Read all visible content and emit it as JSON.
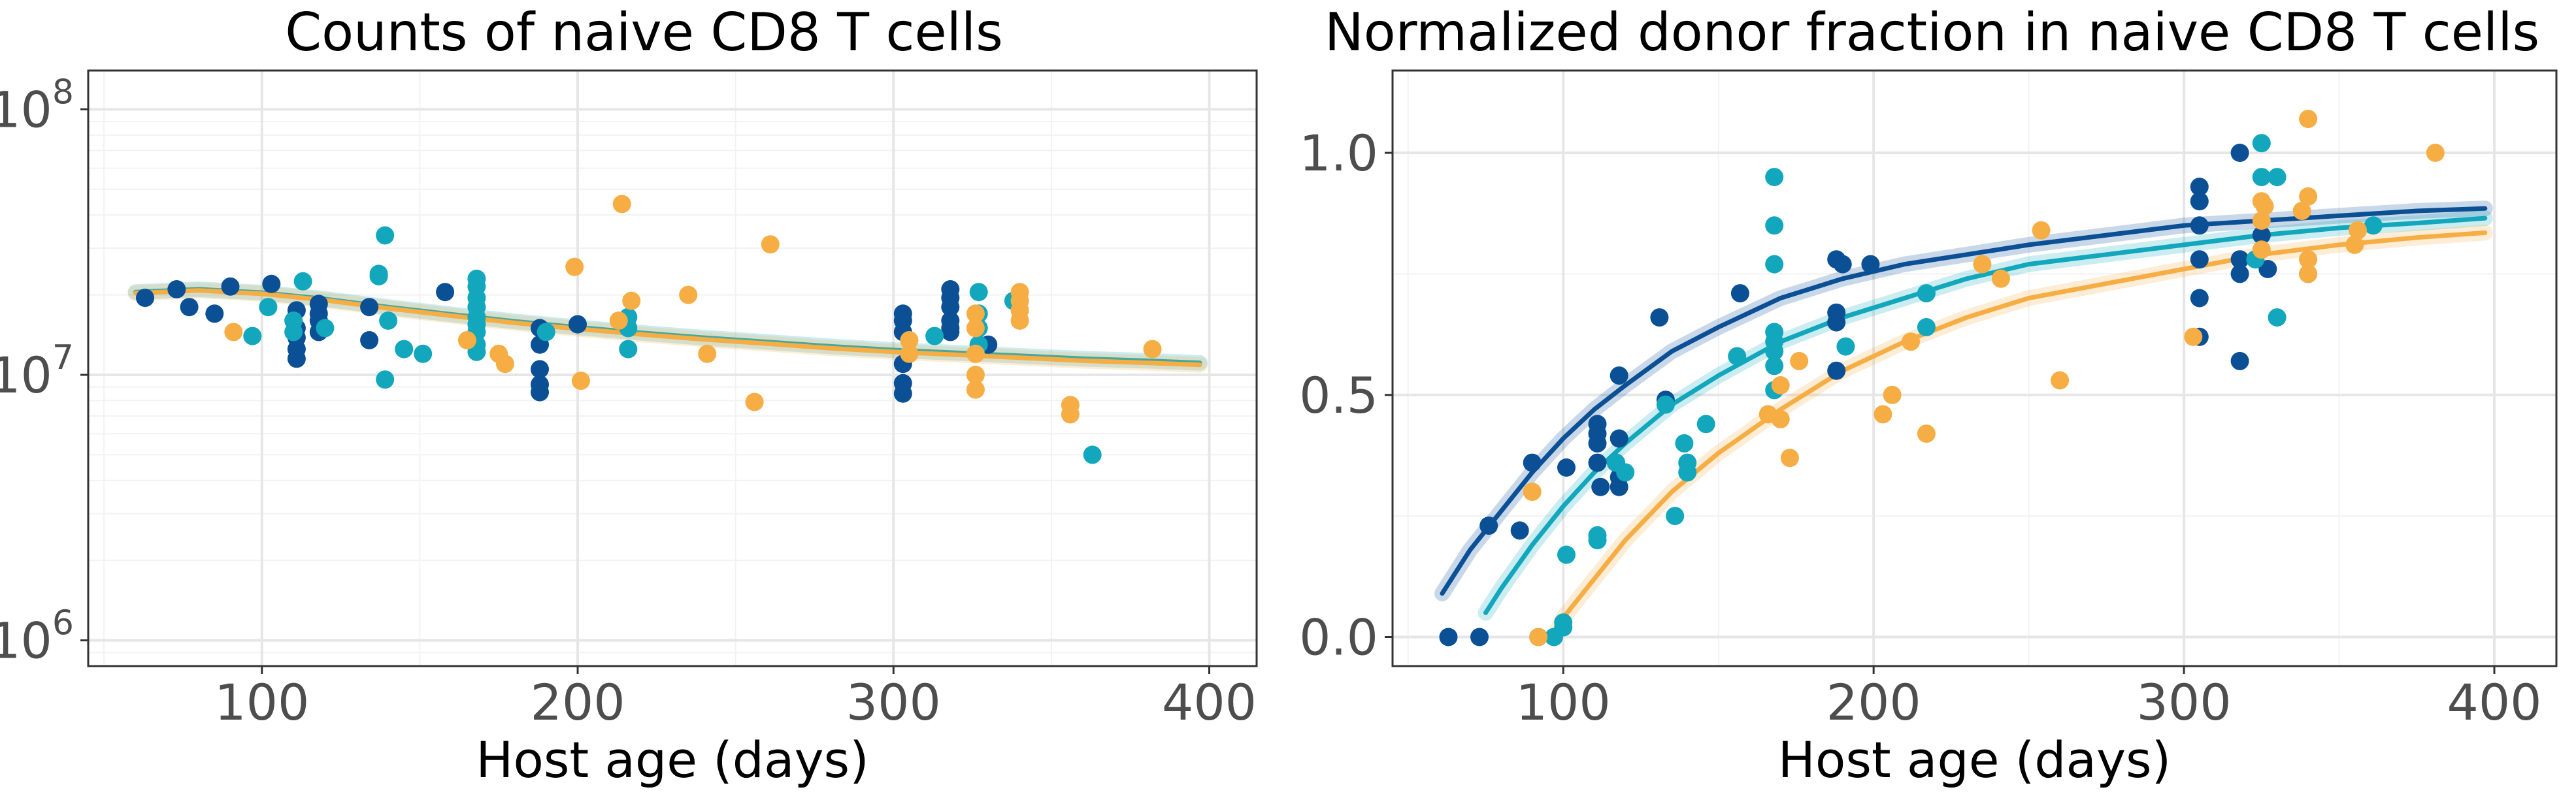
{
  "colors": {
    "navy": "#0b4f95",
    "teal": "#12a7bc",
    "orange": "#f6ad44",
    "grid_major": "#e6e6e6",
    "grid_minor": "#f2f2f2",
    "frame": "#333333",
    "tick_text": "#4d4d4d"
  },
  "chart_data": [
    {
      "type": "scatter",
      "title": "Counts of naive CD8 T cells",
      "xlabel": "Host age (days)",
      "ylabel": "",
      "xlim": [
        45,
        415
      ],
      "ylim": [
        800000,
        140000000
      ],
      "y_scale": "log10",
      "x_ticks": [
        100,
        200,
        300,
        400
      ],
      "x_tick_labels": [
        "100",
        "200",
        "300",
        "400"
      ],
      "y_ticks": [
        1000000,
        10000000,
        100000000
      ],
      "y_tick_labels": [
        {
          "base": "10",
          "exp": "6"
        },
        {
          "base": "10",
          "exp": "7"
        },
        {
          "base": "10",
          "exp": "8"
        }
      ],
      "grid": true,
      "legend": "none",
      "series": [
        {
          "color_key": "navy",
          "points": [
            [
              63,
              19500000.0
            ],
            [
              73,
              21000000.0
            ],
            [
              77,
              18000000.0
            ],
            [
              85,
              17000000.0
            ],
            [
              90,
              21500000.0
            ],
            [
              103,
              22000000.0
            ],
            [
              111,
              17500000.0
            ],
            [
              111,
              15000000.0
            ],
            [
              111,
              13800000.0
            ],
            [
              111,
              12500000.0
            ],
            [
              111,
              11500000.0
            ],
            [
              118,
              18500000.0
            ],
            [
              118,
              17000000.0
            ],
            [
              118,
              16000000.0
            ],
            [
              118,
              14500000.0
            ],
            [
              134,
              18000000.0
            ],
            [
              134,
              13500000.0
            ],
            [
              158,
              20500000.0
            ],
            [
              188,
              15000000.0
            ],
            [
              188,
              13000000.0
            ],
            [
              188,
              10500000.0
            ],
            [
              188,
              9200000.0
            ],
            [
              188,
              8600000.0
            ],
            [
              200,
              15500000.0
            ],
            [
              303,
              17000000.0
            ],
            [
              303,
              16000000.0
            ],
            [
              303,
              14500000.0
            ],
            [
              303,
              11000000.0
            ],
            [
              303,
              9300000.0
            ],
            [
              303,
              8500000.0
            ],
            [
              318,
              21000000.0
            ],
            [
              318,
              19500000.0
            ],
            [
              318,
              18000000.0
            ],
            [
              318,
              16000000.0
            ],
            [
              318,
              15000000.0
            ],
            [
              318,
              14500000.0
            ],
            [
              330,
              13000000.0
            ]
          ]
        },
        {
          "color_key": "teal",
          "points": [
            [
              97,
              14000000.0
            ],
            [
              102,
              18000000.0
            ],
            [
              110,
              16000000.0
            ],
            [
              110,
              14500000.0
            ],
            [
              113,
              22500000.0
            ],
            [
              120,
              15000000.0
            ],
            [
              137,
              24000000.0
            ],
            [
              137,
              23500000.0
            ],
            [
              139,
              33500000.0
            ],
            [
              139,
              9600000.0
            ],
            [
              140,
              16000000.0
            ],
            [
              145,
              12500000.0
            ],
            [
              151,
              12000000.0
            ],
            [
              168,
              23000000.0
            ],
            [
              168,
              21500000.0
            ],
            [
              168,
              19500000.0
            ],
            [
              168,
              18000000.0
            ],
            [
              168,
              16500000.0
            ],
            [
              168,
              15500000.0
            ],
            [
              168,
              14500000.0
            ],
            [
              168,
              13000000.0
            ],
            [
              168,
              12200000.0
            ],
            [
              190,
              14500000.0
            ],
            [
              216,
              16500000.0
            ],
            [
              216,
              15000000.0
            ],
            [
              216,
              12500000.0
            ],
            [
              313,
              14000000.0
            ],
            [
              327,
              20500000.0
            ],
            [
              327,
              17000000.0
            ],
            [
              327,
              15000000.0
            ],
            [
              327,
              13000000.0
            ],
            [
              338,
              19000000.0
            ],
            [
              363,
              5000000.0
            ]
          ]
        },
        {
          "color_key": "orange",
          "points": [
            [
              91,
              14500000.0
            ],
            [
              165,
              13500000.0
            ],
            [
              175,
              12000000.0
            ],
            [
              177,
              11000000.0
            ],
            [
              199,
              25500000.0
            ],
            [
              201,
              9500000.0
            ],
            [
              213,
              16000000.0
            ],
            [
              214,
              44000000.0
            ],
            [
              217,
              19000000.0
            ],
            [
              235,
              20000000.0
            ],
            [
              241,
              12000000.0
            ],
            [
              256,
              7900000.0
            ],
            [
              261,
              31000000.0
            ],
            [
              305,
              13500000.0
            ],
            [
              305,
              12000000.0
            ],
            [
              326,
              17000000.0
            ],
            [
              326,
              15000000.0
            ],
            [
              326,
              12000000.0
            ],
            [
              326,
              10000000.0
            ],
            [
              326,
              8800000.0
            ],
            [
              340,
              20500000.0
            ],
            [
              340,
              19000000.0
            ],
            [
              340,
              17500000.0
            ],
            [
              340,
              16000000.0
            ],
            [
              356,
              7700000.0
            ],
            [
              356,
              7100000.0
            ],
            [
              382,
              12500000.0
            ]
          ]
        }
      ],
      "fit_lines": [
        {
          "color_key": "teal",
          "x": [
            60,
            80,
            100,
            120,
            140,
            160,
            180,
            200,
            220,
            240,
            260,
            280,
            300,
            320,
            340,
            360,
            380,
            397
          ],
          "y": [
            20500000.0,
            21000000.0,
            20400000.0,
            19300000.0,
            18000000.0,
            16900000.0,
            15900000.0,
            15100000.0,
            14400000.0,
            13800000.0,
            13300000.0,
            12800000.0,
            12400000.0,
            12100000.0,
            11800000.0,
            11500000.0,
            11300000.0,
            11100000.0
          ]
        },
        {
          "color_key": "orange",
          "x": [
            60,
            80,
            100,
            120,
            140,
            160,
            180,
            200,
            220,
            240,
            260,
            280,
            300,
            320,
            340,
            360,
            380,
            397
          ],
          "y": [
            20300000.0,
            20800000.0,
            20200000.0,
            19100000.0,
            17800000.0,
            16700000.0,
            15700000.0,
            14900000.0,
            14200000.0,
            13600000.0,
            13100000.0,
            12600000.0,
            12200000.0,
            11900000.0,
            11600000.0,
            11300000.0,
            11100000.0,
            10900000.0
          ]
        }
      ]
    },
    {
      "type": "scatter",
      "title": "Normalized donor fraction in naive CD8 T cells",
      "xlabel": "Host age (days)",
      "ylabel": "",
      "xlim": [
        45,
        420
      ],
      "ylim": [
        -0.06,
        1.17
      ],
      "y_scale": "linear",
      "x_ticks": [
        100,
        200,
        300,
        400
      ],
      "x_tick_labels": [
        "100",
        "200",
        "300",
        "400"
      ],
      "y_ticks": [
        0,
        0.5,
        1
      ],
      "y_tick_labels": [
        "0.0",
        "0.5",
        "1.0"
      ],
      "grid": true,
      "legend": "none",
      "series": [
        {
          "color_key": "navy",
          "points": [
            [
              63,
              0.0
            ],
            [
              73,
              0.0
            ],
            [
              76,
              0.23
            ],
            [
              86,
              0.22
            ],
            [
              90,
              0.36
            ],
            [
              101,
              0.35
            ],
            [
              111,
              0.44
            ],
            [
              111,
              0.42
            ],
            [
              111,
              0.4
            ],
            [
              111,
              0.36
            ],
            [
              112,
              0.31
            ],
            [
              117,
              0.36
            ],
            [
              118,
              0.33
            ],
            [
              118,
              0.31
            ],
            [
              118,
              0.54
            ],
            [
              118,
              0.41
            ],
            [
              131,
              0.66
            ],
            [
              133,
              0.49
            ],
            [
              157,
              0.71
            ],
            [
              188,
              0.78
            ],
            [
              188,
              0.67
            ],
            [
              188,
              0.65
            ],
            [
              188,
              0.55
            ],
            [
              190,
              0.77
            ],
            [
              199,
              0.77
            ],
            [
              305,
              0.93
            ],
            [
              305,
              0.9
            ],
            [
              305,
              0.85
            ],
            [
              305,
              0.78
            ],
            [
              305,
              0.7
            ],
            [
              305,
              0.62
            ],
            [
              318,
              1.0
            ],
            [
              318,
              0.78
            ],
            [
              318,
              0.75
            ],
            [
              318,
              0.57
            ],
            [
              325,
              0.83
            ],
            [
              327,
              0.76
            ]
          ]
        },
        {
          "color_key": "teal",
          "points": [
            [
              92,
              0.0
            ],
            [
              97,
              0.0
            ],
            [
              100,
              0.03
            ],
            [
              100,
              0.02
            ],
            [
              101,
              0.17
            ],
            [
              111,
              0.21
            ],
            [
              111,
              0.2
            ],
            [
              117,
              0.36
            ],
            [
              120,
              0.34
            ],
            [
              133,
              0.48
            ],
            [
              136,
              0.25
            ],
            [
              139,
              0.4
            ],
            [
              140,
              0.36
            ],
            [
              140,
              0.34
            ],
            [
              146,
              0.44
            ],
            [
              156,
              0.58
            ],
            [
              168,
              0.95
            ],
            [
              168,
              0.85
            ],
            [
              168,
              0.77
            ],
            [
              168,
              0.63
            ],
            [
              168,
              0.61
            ],
            [
              168,
              0.59
            ],
            [
              168,
              0.56
            ],
            [
              168,
              0.51
            ],
            [
              191,
              0.6
            ],
            [
              217,
              0.64
            ],
            [
              217,
              0.71
            ],
            [
              323,
              0.78
            ],
            [
              325,
              1.02
            ],
            [
              325,
              0.95
            ],
            [
              330,
              0.95
            ],
            [
              330,
              0.66
            ],
            [
              340,
              0.75
            ],
            [
              361,
              0.85
            ]
          ]
        },
        {
          "color_key": "orange",
          "points": [
            [
              90,
              0.3
            ],
            [
              92,
              0.0
            ],
            [
              166,
              0.46
            ],
            [
              170,
              0.52
            ],
            [
              170,
              0.45
            ],
            [
              173,
              0.37
            ],
            [
              176,
              0.57
            ],
            [
              203,
              0.46
            ],
            [
              206,
              0.5
            ],
            [
              212,
              0.61
            ],
            [
              217,
              0.42
            ],
            [
              235,
              0.77
            ],
            [
              241,
              0.74
            ],
            [
              254,
              0.84
            ],
            [
              260,
              0.53
            ],
            [
              303,
              0.62
            ],
            [
              325,
              0.9
            ],
            [
              325,
              0.86
            ],
            [
              325,
              0.8
            ],
            [
              326,
              0.89
            ],
            [
              338,
              0.88
            ],
            [
              340,
              1.07
            ],
            [
              340,
              0.91
            ],
            [
              340,
              0.78
            ],
            [
              340,
              0.75
            ],
            [
              355,
              0.81
            ],
            [
              356,
              0.84
            ],
            [
              381,
              1.0
            ]
          ]
        }
      ],
      "fit_lines": [
        {
          "color_key": "navy",
          "x": [
            61,
            70,
            80,
            90,
            100,
            110,
            120,
            135,
            150,
            170,
            190,
            210,
            230,
            250,
            275,
            300,
            325,
            350,
            375,
            397
          ],
          "y": [
            0.09,
            0.18,
            0.26,
            0.34,
            0.41,
            0.47,
            0.52,
            0.59,
            0.64,
            0.7,
            0.74,
            0.77,
            0.79,
            0.81,
            0.83,
            0.85,
            0.86,
            0.87,
            0.88,
            0.885
          ]
        },
        {
          "color_key": "teal",
          "x": [
            75,
            80,
            90,
            100,
            110,
            120,
            135,
            150,
            170,
            190,
            210,
            230,
            250,
            275,
            300,
            325,
            350,
            375,
            397
          ],
          "y": [
            0.05,
            0.1,
            0.19,
            0.27,
            0.34,
            0.4,
            0.48,
            0.54,
            0.61,
            0.66,
            0.7,
            0.74,
            0.77,
            0.79,
            0.81,
            0.83,
            0.845,
            0.855,
            0.865
          ]
        },
        {
          "color_key": "orange",
          "x": [
            97,
            100,
            110,
            120,
            135,
            150,
            170,
            190,
            210,
            230,
            250,
            275,
            300,
            325,
            350,
            375,
            397
          ],
          "y": [
            0.0,
            0.04,
            0.12,
            0.2,
            0.3,
            0.38,
            0.47,
            0.55,
            0.61,
            0.66,
            0.7,
            0.73,
            0.76,
            0.79,
            0.81,
            0.825,
            0.835
          ]
        }
      ]
    }
  ]
}
